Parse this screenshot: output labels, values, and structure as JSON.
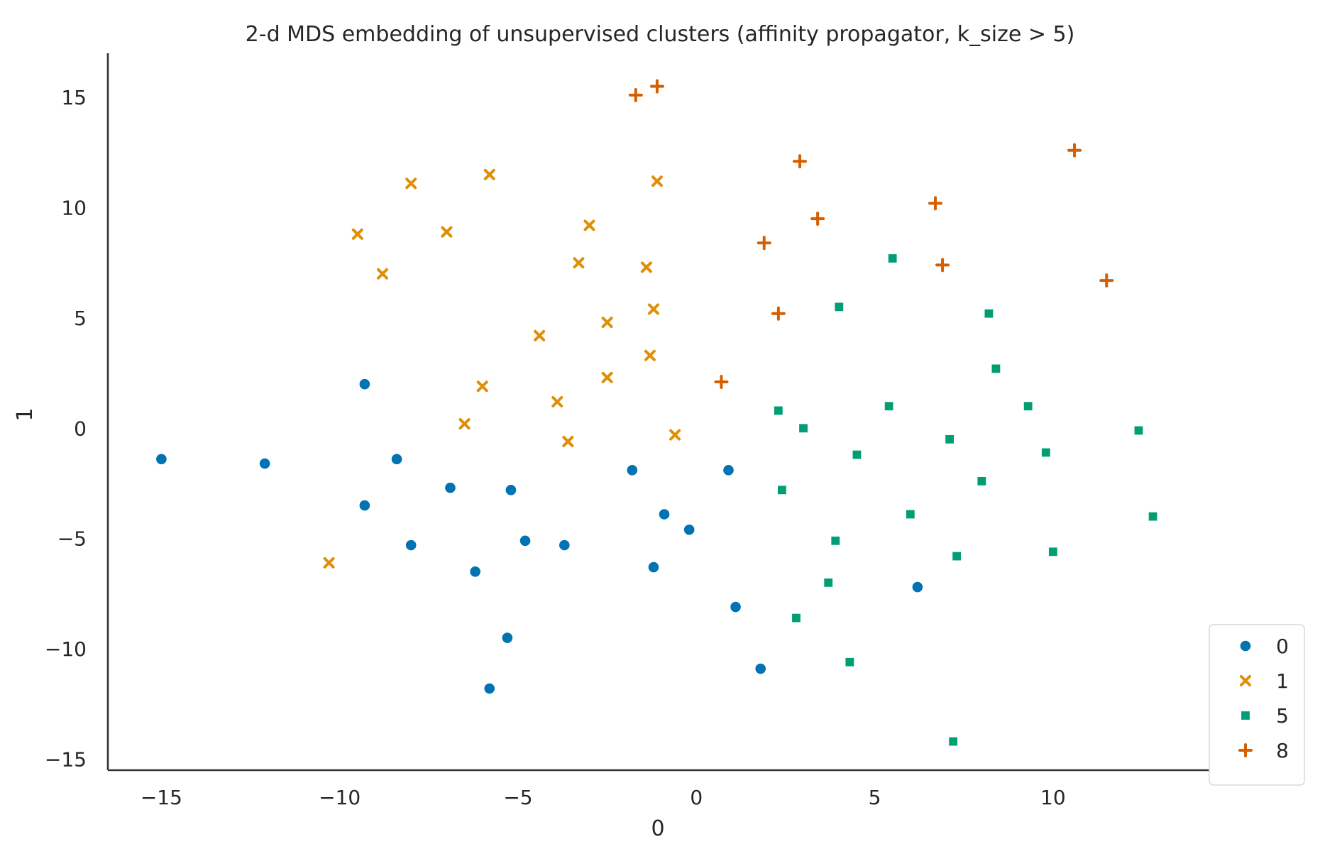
{
  "chart_data": {
    "type": "scatter",
    "title": "2-d MDS embedding of unsupervised clusters (affinity propagator, k_size > 5)",
    "xlabel": "0",
    "ylabel": "1",
    "xlim": [
      -16.5,
      14.5
    ],
    "ylim": [
      -15.5,
      17
    ],
    "xticks": [
      -15,
      -10,
      -5,
      0,
      5,
      10
    ],
    "yticks": [
      -15,
      -10,
      -5,
      0,
      5,
      10,
      15
    ],
    "xtick_labels": [
      "−15",
      "−10",
      "−5",
      "0",
      "5",
      "10"
    ],
    "ytick_labels": [
      "−15",
      "−10",
      "−5",
      "0",
      "5",
      "10",
      "15"
    ],
    "grid": false,
    "legend_position": "lower-right",
    "series": [
      {
        "name": "0",
        "marker": "circle",
        "color": "#0173b2",
        "points": [
          [
            -15.0,
            -1.4
          ],
          [
            -12.1,
            -1.6
          ],
          [
            -9.3,
            2.0
          ],
          [
            -8.4,
            -1.4
          ],
          [
            -9.3,
            -3.5
          ],
          [
            -8.0,
            -5.3
          ],
          [
            -6.9,
            -2.7
          ],
          [
            -6.2,
            -6.5
          ],
          [
            -5.2,
            -2.8
          ],
          [
            -4.8,
            -5.1
          ],
          [
            -3.7,
            -5.3
          ],
          [
            -5.3,
            -9.5
          ],
          [
            -5.8,
            -11.8
          ],
          [
            -1.8,
            -1.9
          ],
          [
            -1.2,
            -6.3
          ],
          [
            -0.9,
            -3.9
          ],
          [
            -0.2,
            -4.6
          ],
          [
            0.9,
            -1.9
          ],
          [
            1.1,
            -8.1
          ],
          [
            1.8,
            -10.9
          ],
          [
            6.2,
            -7.2
          ]
        ]
      },
      {
        "name": "1",
        "marker": "x",
        "color": "#de8f05",
        "points": [
          [
            -9.5,
            8.8
          ],
          [
            -8.8,
            7.0
          ],
          [
            -8.0,
            11.1
          ],
          [
            -7.0,
            8.9
          ],
          [
            -5.8,
            11.5
          ],
          [
            -6.0,
            1.9
          ],
          [
            -6.5,
            0.2
          ],
          [
            -4.4,
            4.2
          ],
          [
            -3.9,
            1.2
          ],
          [
            -3.6,
            -0.6
          ],
          [
            -3.3,
            7.5
          ],
          [
            -3.0,
            9.2
          ],
          [
            -2.5,
            4.8
          ],
          [
            -2.5,
            2.3
          ],
          [
            -1.4,
            7.3
          ],
          [
            -1.3,
            3.3
          ],
          [
            -1.2,
            5.4
          ],
          [
            -1.1,
            11.2
          ],
          [
            -0.6,
            -0.3
          ],
          [
            -10.3,
            -6.1
          ]
        ]
      },
      {
        "name": "5",
        "marker": "square",
        "color": "#029e73",
        "points": [
          [
            2.3,
            0.8
          ],
          [
            2.4,
            -2.8
          ],
          [
            2.8,
            -8.6
          ],
          [
            3.0,
            0.0
          ],
          [
            3.7,
            -7.0
          ],
          [
            3.9,
            -5.1
          ],
          [
            4.0,
            5.5
          ],
          [
            4.3,
            -10.6
          ],
          [
            4.5,
            -1.2
          ],
          [
            5.4,
            1.0
          ],
          [
            5.5,
            7.7
          ],
          [
            6.0,
            -3.9
          ],
          [
            7.1,
            -0.5
          ],
          [
            7.2,
            -14.2
          ],
          [
            7.3,
            -5.8
          ],
          [
            8.0,
            -2.4
          ],
          [
            8.2,
            5.2
          ],
          [
            8.4,
            2.7
          ],
          [
            9.3,
            1.0
          ],
          [
            9.8,
            -1.1
          ],
          [
            10.0,
            -5.6
          ],
          [
            12.4,
            -0.1
          ],
          [
            12.8,
            -4.0
          ]
        ]
      },
      {
        "name": "8",
        "marker": "plus",
        "color": "#d55e00",
        "points": [
          [
            -1.7,
            15.1
          ],
          [
            -1.1,
            15.5
          ],
          [
            0.7,
            2.1
          ],
          [
            1.9,
            8.4
          ],
          [
            2.3,
            5.2
          ],
          [
            2.9,
            12.1
          ],
          [
            3.4,
            9.5
          ],
          [
            6.7,
            10.2
          ],
          [
            6.9,
            7.4
          ],
          [
            10.6,
            12.6
          ],
          [
            11.5,
            6.7
          ]
        ]
      }
    ]
  }
}
